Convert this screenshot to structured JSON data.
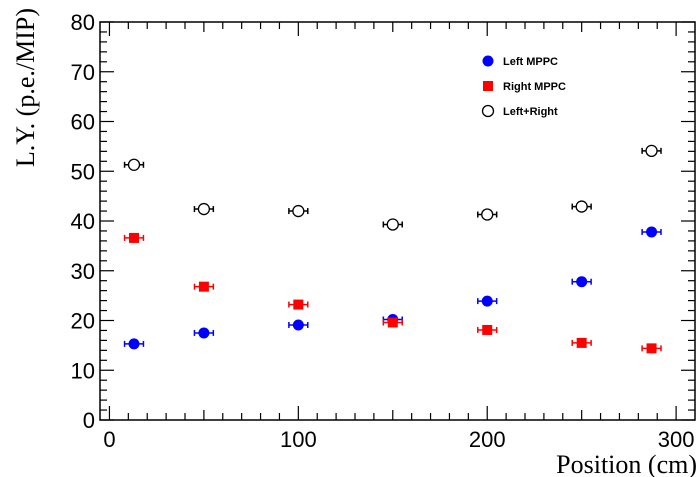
{
  "chart_data": {
    "type": "scatter",
    "title": "",
    "xlabel": "Position (cm)",
    "ylabel": "L.Y. (p.e./MIP)",
    "xlim": [
      -5,
      310
    ],
    "ylim": [
      0,
      80
    ],
    "x_ticks": [
      0,
      100,
      200,
      300
    ],
    "y_ticks": [
      0,
      10,
      20,
      30,
      40,
      50,
      60,
      70,
      80
    ],
    "x_tick_labels": [
      "0",
      "100",
      "200",
      "300"
    ],
    "y_tick_labels": [
      "0",
      "10",
      "20",
      "30",
      "40",
      "50",
      "60",
      "70",
      "80"
    ],
    "grid": false,
    "legend_position": "top-right",
    "x": [
      13,
      50,
      100,
      150,
      200,
      250,
      287
    ],
    "x_error": 5,
    "series": [
      {
        "name": "Left MPPC",
        "marker": "filled-circle",
        "color": "#0000ff",
        "values": [
          15.3,
          17.5,
          19.1,
          20.2,
          23.9,
          27.8,
          37.8
        ]
      },
      {
        "name": "Right MPPC",
        "marker": "filled-square",
        "color": "#ff0000",
        "values": [
          36.6,
          26.8,
          23.2,
          19.6,
          18.1,
          15.5,
          14.4
        ]
      },
      {
        "name": "Left+Right",
        "marker": "open-circle",
        "color": "#000000",
        "values": [
          51.3,
          42.4,
          42.0,
          39.3,
          41.3,
          42.9,
          54.1
        ]
      }
    ]
  }
}
